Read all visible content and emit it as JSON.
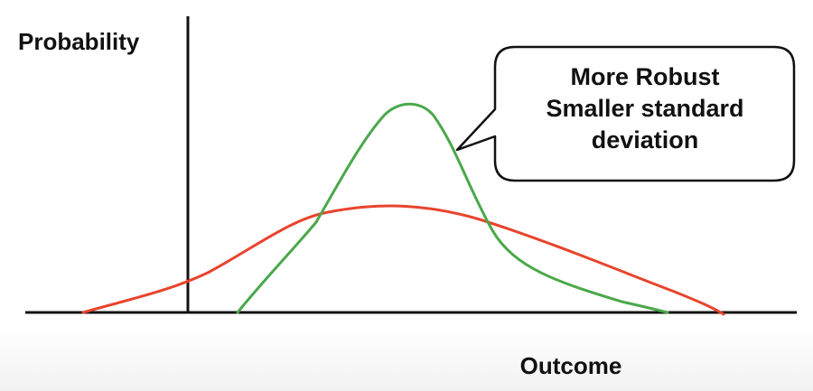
{
  "diagram": {
    "y_axis_label": "Probability",
    "x_axis_label": "Outcome",
    "callout": {
      "lines": [
        "More Robust",
        "Smaller standard",
        "deviation"
      ]
    },
    "curves": {
      "narrow": {
        "color": "#4aa84a",
        "description": "narrow distribution"
      },
      "wide": {
        "color": "#e8442d",
        "description": "wide distribution"
      }
    }
  }
}
